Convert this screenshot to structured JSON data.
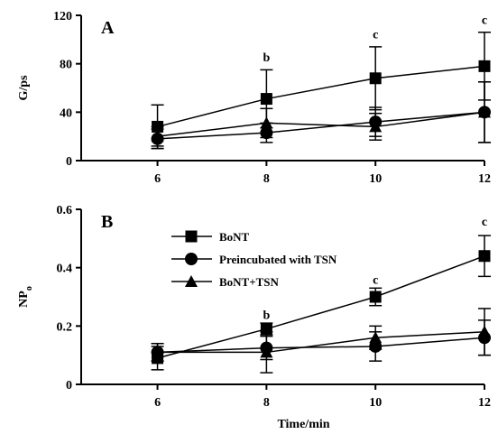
{
  "chart_data": [
    {
      "type": "line",
      "panel_label": "A",
      "ylabel": "G/ps",
      "xlabel": "",
      "x": [
        6,
        8,
        10,
        12
      ],
      "x_ticks": [
        "6",
        "8",
        "10",
        "12"
      ],
      "xlim": [
        4.6,
        12
      ],
      "ylim": [
        0,
        120
      ],
      "y_ticks": [
        "0",
        "40",
        "80",
        "120"
      ],
      "series": [
        {
          "name": "BoNT",
          "marker": "square",
          "values": [
            28,
            51,
            68,
            78
          ],
          "errors": [
            18,
            24,
            26,
            28
          ]
        },
        {
          "name": "Preincubated with TSN",
          "marker": "circle",
          "values": [
            18,
            23,
            32,
            40
          ],
          "errors": [
            8,
            8,
            12,
            25
          ]
        },
        {
          "name": "BoNT+TSN",
          "marker": "triangle",
          "values": [
            20,
            31,
            28,
            40
          ],
          "errors": [
            8,
            12,
            11,
            25
          ]
        }
      ],
      "annotations": [
        {
          "x": 8,
          "y": 82,
          "text": "b"
        },
        {
          "x": 10,
          "y": 101,
          "text": "c"
        },
        {
          "x": 12,
          "y": 113,
          "text": "c"
        }
      ]
    },
    {
      "type": "line",
      "panel_label": "B",
      "ylabel": "NP",
      "ylabel_subscript": "o",
      "xlabel": "Time/min",
      "x": [
        6,
        8,
        10,
        12
      ],
      "x_ticks": [
        "6",
        "8",
        "10",
        "12"
      ],
      "xlim": [
        4.6,
        12
      ],
      "ylim": [
        0,
        0.6
      ],
      "y_ticks": [
        "0",
        "0.2",
        "0.4",
        "0.6"
      ],
      "legend": {
        "placement": "top-center",
        "entries": [
          "BoNT",
          "Preincubated with TSN",
          "BoNT+TSN"
        ]
      },
      "series": [
        {
          "name": "BoNT",
          "marker": "square",
          "values": [
            0.09,
            0.19,
            0.3,
            0.44
          ],
          "errors": [
            0.04,
            0.02,
            0.03,
            0.07
          ]
        },
        {
          "name": "Preincubated with TSN",
          "marker": "circle",
          "values": [
            0.11,
            0.125,
            0.13,
            0.16
          ],
          "errors": [
            0.03,
            0.04,
            0.05,
            0.06
          ]
        },
        {
          "name": "BoNT+TSN",
          "marker": "triangle",
          "values": [
            0.11,
            0.11,
            0.16,
            0.18
          ],
          "errors": [
            0.03,
            0.07,
            0.04,
            0.08
          ]
        }
      ],
      "annotations": [
        {
          "x": 8,
          "y": 0.225,
          "text": "b"
        },
        {
          "x": 10,
          "y": 0.345,
          "text": "c"
        },
        {
          "x": 12,
          "y": 0.545,
          "text": "c"
        }
      ]
    }
  ]
}
